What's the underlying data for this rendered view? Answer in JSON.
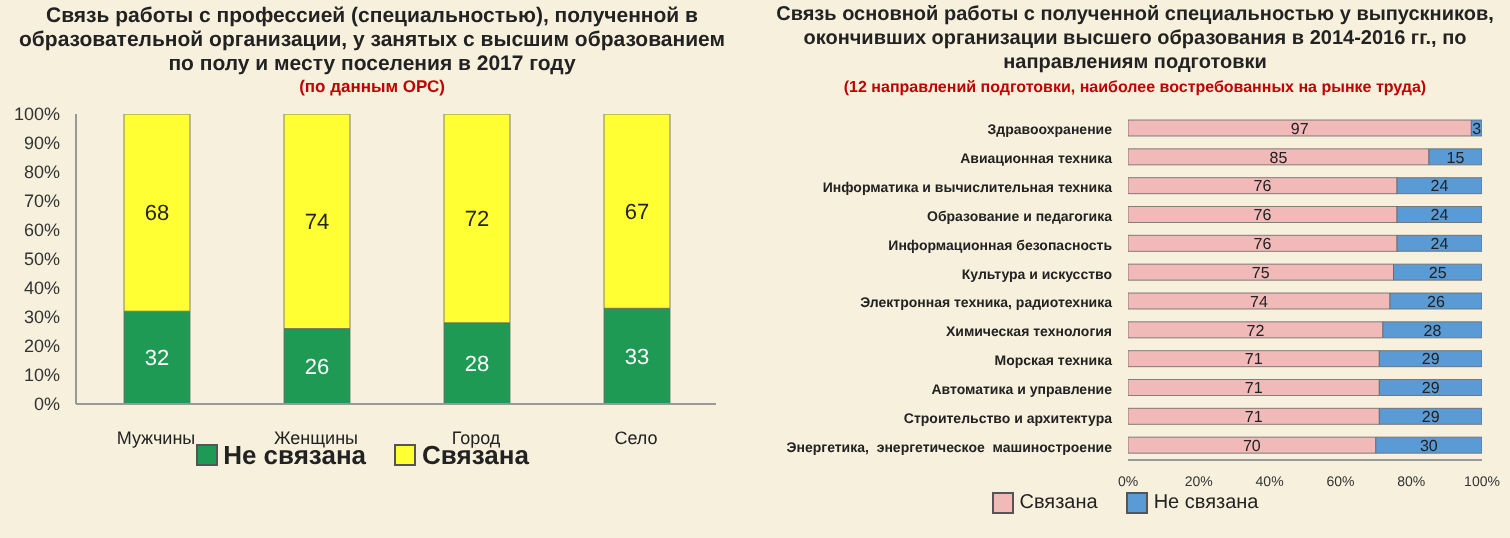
{
  "chart_data": [
    {
      "type": "bar",
      "title": "Связь работы с профессией (специальностью), полученной в образовательной организации, у занятых с высшим образованием по полу и месту поселения в 2017 году",
      "subtitle": "(по данным ОРС)",
      "categories": [
        "Мужчины",
        "Женщины",
        "Город",
        "Село"
      ],
      "stacked": true,
      "series": [
        {
          "name": "Не связана",
          "color": "#1f9a55",
          "values": [
            32,
            26,
            28,
            33
          ]
        },
        {
          "name": "Связана",
          "color": "#ffff33",
          "values": [
            68,
            74,
            72,
            67
          ]
        }
      ],
      "ylim": [
        0,
        100
      ],
      "yticks": [
        {
          "value": 0,
          "label": "0%"
        },
        {
          "value": 10,
          "label": "10%"
        },
        {
          "value": 20,
          "label": "20%"
        },
        {
          "value": 30,
          "label": "30%"
        },
        {
          "value": 40,
          "label": "40%"
        },
        {
          "value": 50,
          "label": "50%"
        },
        {
          "value": 60,
          "label": "60%"
        },
        {
          "value": 70,
          "label": "70%"
        },
        {
          "value": 80,
          "label": "80%"
        },
        {
          "value": 90,
          "label": "90%"
        },
        {
          "value": 100,
          "label": "100%"
        }
      ],
      "data_labels": true,
      "legend": "bottom"
    },
    {
      "type": "bar",
      "orientation": "horizontal",
      "stacked": true,
      "title": "Связь основной работы с полученной специальностью у выпускников, окончивших организации высшего образования в 2014-2016 гг., по направлениям подготовки",
      "subtitle": "(12 направлений подготовки, наиболее востребованных на рынке труда)",
      "categories": [
        "Здравоохранение",
        "Авиационная техника",
        "Информатика и вычислительная техника",
        "Образование и педагогика",
        "Информационная безопасность",
        "Культура и искусство",
        "Электронная техника, радиотехника",
        "Химическая технология",
        "Морская техника",
        "Автоматика и управление",
        "Строительство и архитектура",
        "Энергетика,  энергетическое  машиностроение"
      ],
      "series": [
        {
          "name": "Связана",
          "color": "#f2b9b9",
          "values": [
            97,
            85,
            76,
            76,
            76,
            75,
            74,
            72,
            71,
            71,
            71,
            70
          ]
        },
        {
          "name": "Не связана",
          "color": "#5b9bd5",
          "values": [
            3,
            15,
            24,
            24,
            24,
            25,
            26,
            28,
            29,
            29,
            29,
            30
          ]
        }
      ],
      "xlim": [
        0,
        100
      ],
      "xticks": [
        {
          "value": 0,
          "label": "0%"
        },
        {
          "value": 20,
          "label": "20%"
        },
        {
          "value": 40,
          "label": "40%"
        },
        {
          "value": 60,
          "label": "60%"
        },
        {
          "value": 80,
          "label": "80%"
        },
        {
          "value": 100,
          "label": "100%"
        }
      ],
      "data_labels": true,
      "legend": "bottom"
    }
  ]
}
